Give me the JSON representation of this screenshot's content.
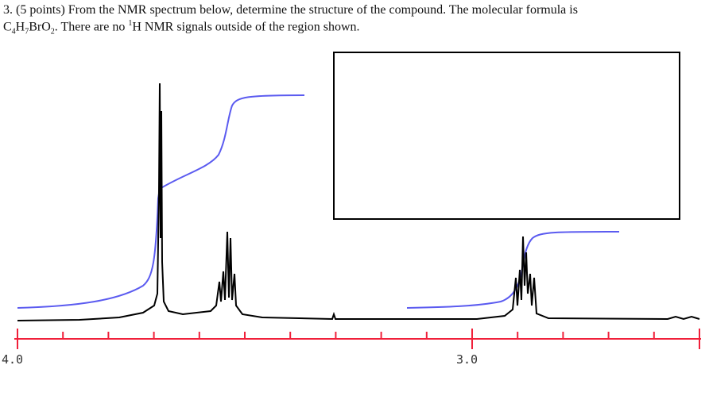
{
  "question": {
    "line1": "3.  (5 points)  From the NMR spectrum below, determine the structure of the compound.  The molecular formula is",
    "formula": [
      "C",
      "4",
      "H",
      "7",
      "BrO",
      "2"
    ],
    "line2_start": ".  There are no ",
    "superscript": "1",
    "line2_end": "H NMR signals outside of the region shown."
  },
  "axis": {
    "labels": [
      "4.0",
      "3.0"
    ]
  }
}
